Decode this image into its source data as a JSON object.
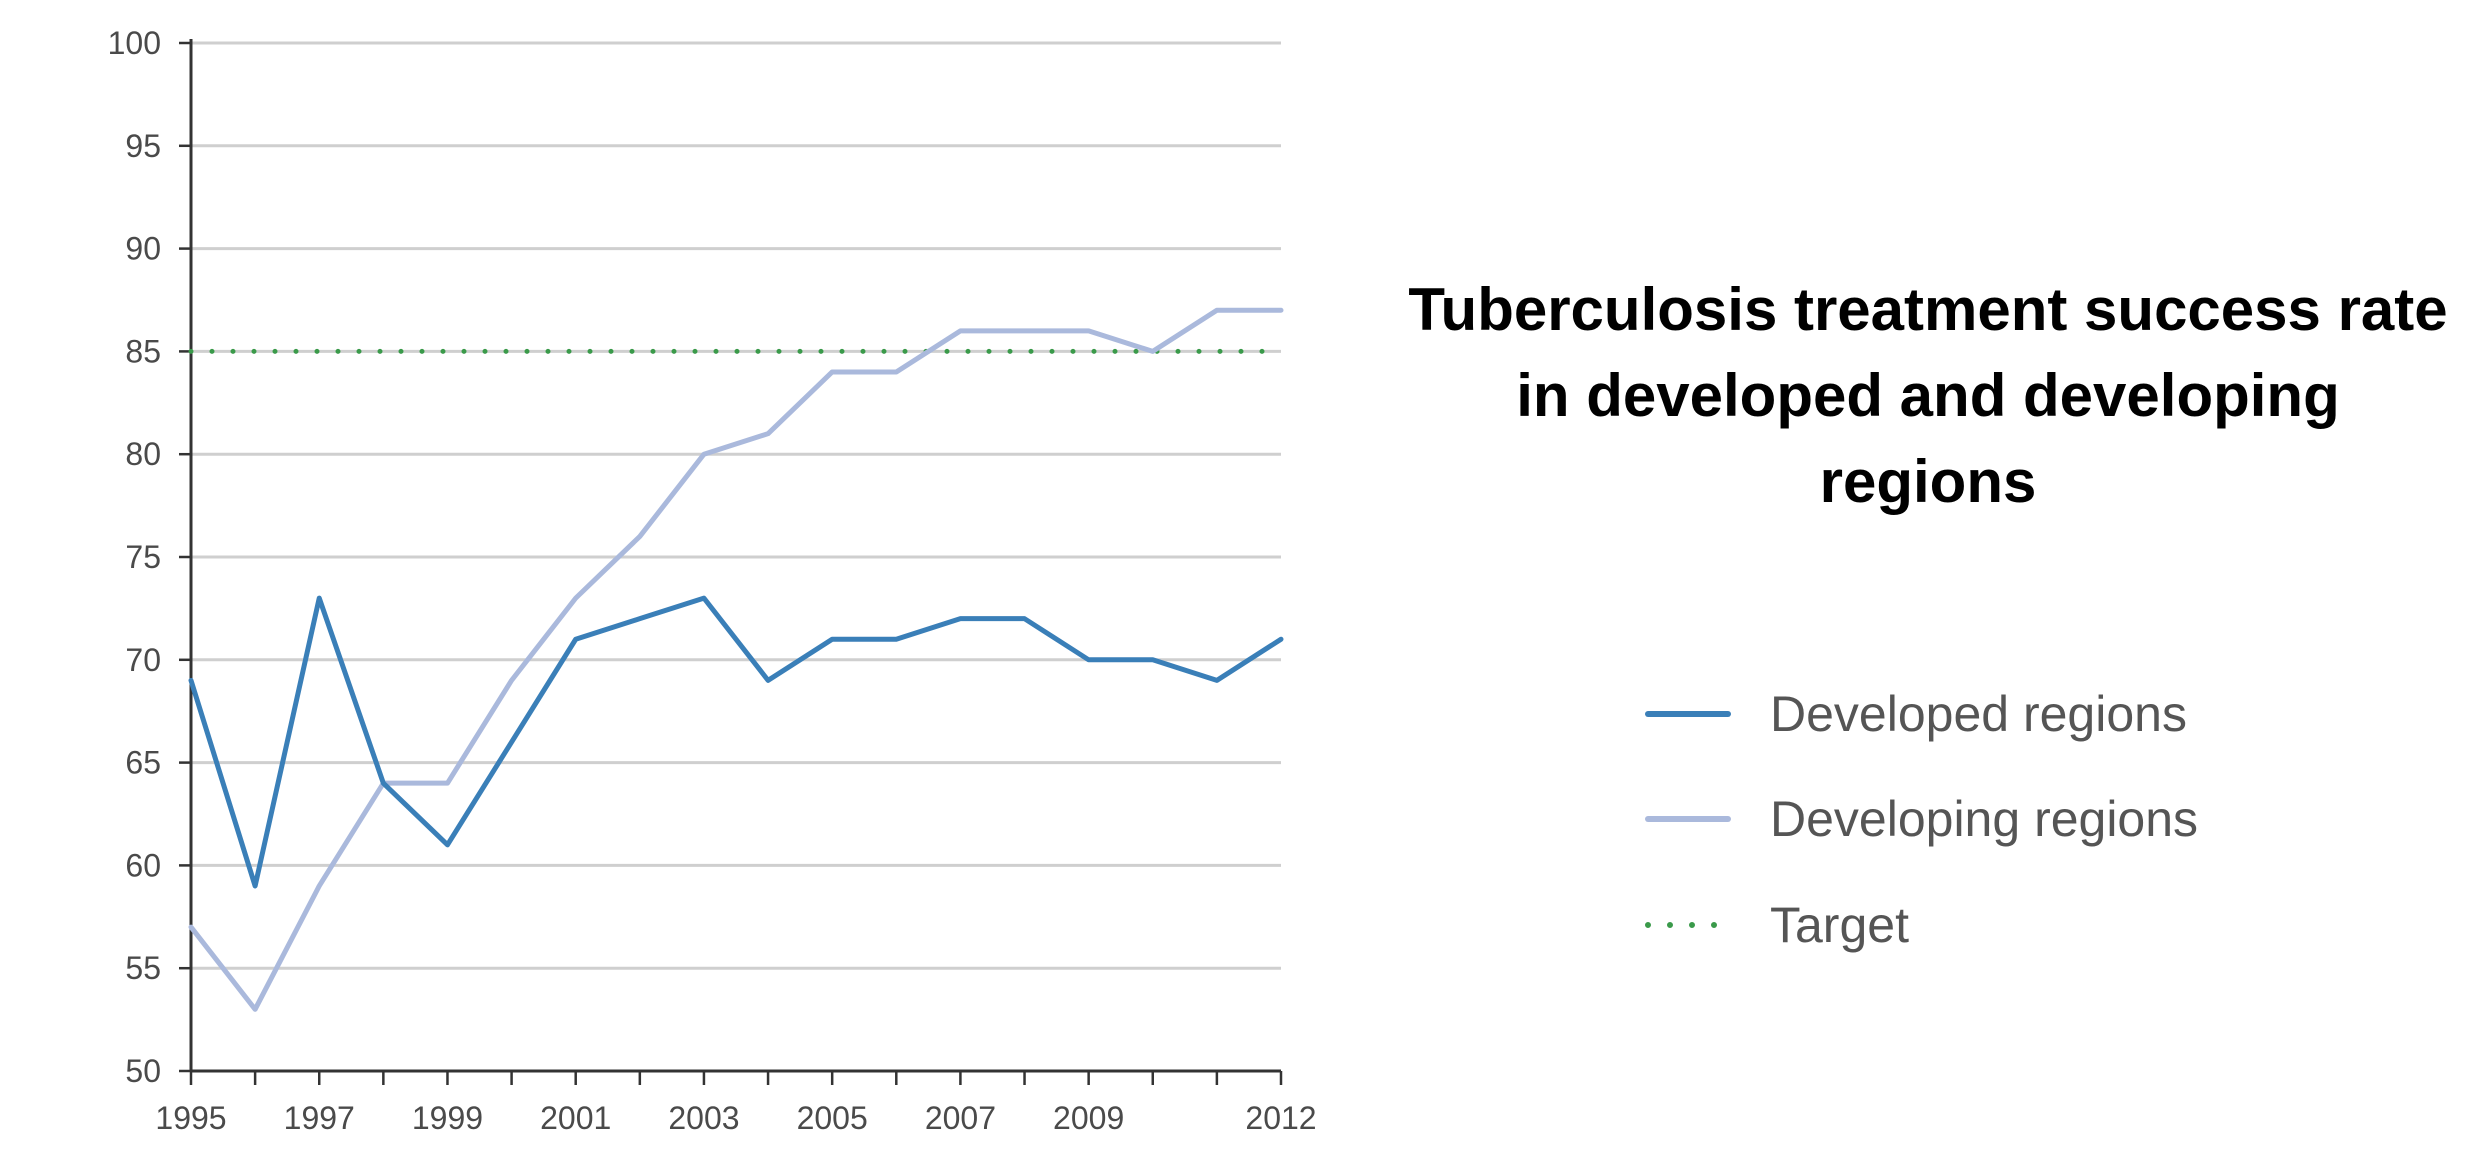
{
  "chart_data": {
    "type": "line",
    "title": "Tuberculosis treatment success rate in developed and developing regions",
    "x": [
      1995,
      1996,
      1997,
      1998,
      1999,
      2000,
      2001,
      2002,
      2003,
      2004,
      2005,
      2006,
      2007,
      2008,
      2009,
      2010,
      2011,
      2012
    ],
    "x_tick_labels": [
      "1995",
      "1997",
      "1999",
      "2001",
      "2003",
      "2005",
      "2007",
      "2009",
      "2012"
    ],
    "y_tick_labels": [
      "50",
      "55",
      "60",
      "65",
      "70",
      "75",
      "80",
      "85",
      "90",
      "95",
      "100"
    ],
    "xlim": [
      1995,
      2012
    ],
    "ylim": [
      50,
      100
    ],
    "grid": "horizontal",
    "legend_position": "right",
    "series": [
      {
        "name": "Developed regions",
        "color": "#3a7fb8",
        "style": "solid",
        "values": [
          69,
          59,
          73,
          64,
          61,
          66,
          71,
          72,
          73,
          69,
          71,
          71,
          72,
          72,
          70,
          70,
          69,
          71
        ]
      },
      {
        "name": "Developing regions",
        "color": "#aab9dc",
        "style": "solid",
        "values": [
          57,
          53,
          59,
          64,
          64,
          69,
          73,
          76,
          80,
          81,
          84,
          84,
          86,
          86,
          86,
          85,
          87,
          87
        ]
      },
      {
        "name": "Target",
        "color": "#3a9a4a",
        "style": "dotted",
        "values": [
          85,
          85,
          85,
          85,
          85,
          85,
          85,
          85,
          85,
          85,
          85,
          85,
          85,
          85,
          85,
          85,
          85,
          85
        ]
      }
    ]
  }
}
